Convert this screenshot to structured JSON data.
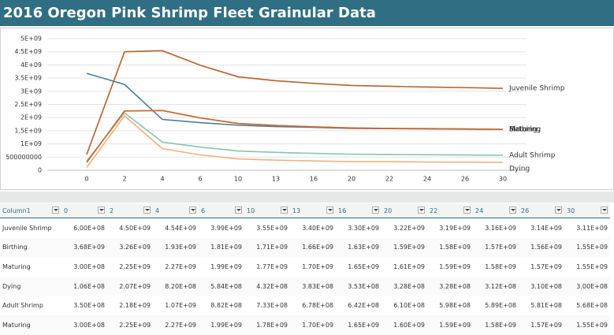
{
  "header": {
    "title": "2016 Oregon Pink Shrimp Fleet Grainular Data"
  },
  "chart_data": {
    "type": "line",
    "categories": [
      "0",
      "2",
      "4",
      "6",
      "10",
      "13",
      "16",
      "20",
      "22",
      "24",
      "26",
      "30"
    ],
    "ylim": [
      0,
      5000000000
    ],
    "yticks": [
      0,
      500000000,
      {
        "value": 1000000000,
        "label": "1E+09"
      },
      {
        "value": 1500000000,
        "label": "1.5E+09"
      },
      {
        "value": 2000000000,
        "label": "2E+09"
      },
      {
        "value": 2500000000,
        "label": "2.5E+09"
      },
      {
        "value": 3000000000,
        "label": "3E+09"
      },
      {
        "value": 3500000000,
        "label": "3.5E+09"
      },
      {
        "value": 4000000000,
        "label": "4E+09"
      },
      {
        "value": 4500000000,
        "label": "4.5E+09"
      },
      {
        "value": 5000000000,
        "label": "5E+09"
      }
    ],
    "grid": true,
    "series": [
      {
        "name": "Juvenile Shrimp",
        "color": "#b9602a",
        "values": [
          600000000,
          4500000000,
          4540000000,
          3990000000,
          3550000000,
          3400000000,
          3300000000,
          3220000000,
          3190000000,
          3160000000,
          3140000000,
          3110000000
        ]
      },
      {
        "name": "Birthing",
        "color": "#4a7c9c",
        "values": [
          3680000000,
          3260000000,
          1930000000,
          1810000000,
          1710000000,
          1660000000,
          1630000000,
          1590000000,
          1580000000,
          1570000000,
          1560000000,
          1550000000
        ]
      },
      {
        "name": "Maturing",
        "color": "#d9823f",
        "values": [
          300000000,
          2250000000,
          2270000000,
          1990000000,
          1770000000,
          1700000000,
          1650000000,
          1610000000,
          1590000000,
          1580000000,
          1570000000,
          1550000000
        ]
      },
      {
        "name": "Dying",
        "color": "#f0b27a",
        "values": [
          106000000,
          2070000000,
          820000000,
          584000000,
          432000000,
          383000000,
          353000000,
          328000000,
          328000000,
          312000000,
          310000000,
          300000000
        ]
      },
      {
        "name": "Adult Shrimp",
        "color": "#86c4ad",
        "values": [
          350000000,
          2180000000,
          1070000000,
          882000000,
          733000000,
          678000000,
          642000000,
          610000000,
          598000000,
          589000000,
          581000000,
          568000000
        ]
      },
      {
        "name": "Maturing",
        "color": "#c76b33",
        "values": [
          300000000,
          2250000000,
          2270000000,
          1990000000,
          1780000000,
          1700000000,
          1650000000,
          1600000000,
          1590000000,
          1580000000,
          1570000000,
          1550000000
        ]
      }
    ]
  },
  "table": {
    "columns": [
      "Column1",
      "0",
      "2",
      "4",
      "6",
      "10",
      "13",
      "16",
      "20",
      "22",
      "24",
      "26",
      "30"
    ],
    "rows": [
      [
        "Juvenile Shrimp",
        "6.00E+08",
        "4.50E+09",
        "4.54E+09",
        "3.99E+09",
        "3.55E+09",
        "3.40E+09",
        "3.30E+09",
        "3.22E+09",
        "3.19E+09",
        "3.16E+09",
        "3.14E+09",
        "3.11E+09"
      ],
      [
        "Birthing",
        "3.68E+09",
        "3.26E+09",
        "1.93E+09",
        "1.81E+09",
        "1.71E+09",
        "1.66E+09",
        "1.63E+09",
        "1.59E+09",
        "1.58E+09",
        "1.57E+09",
        "1.56E+09",
        "1.55E+09"
      ],
      [
        "Maturing",
        "3.00E+08",
        "2.25E+09",
        "2.27E+09",
        "1.99E+09",
        "1.77E+09",
        "1.70E+09",
        "1.65E+09",
        "1.61E+09",
        "1.59E+09",
        "1.58E+09",
        "1.57E+09",
        "1.55E+09"
      ],
      [
        "Dying",
        "1.06E+08",
        "2.07E+09",
        "8.20E+08",
        "5.84E+08",
        "4.32E+08",
        "3.83E+08",
        "3.53E+08",
        "3.28E+08",
        "3.28E+08",
        "3.12E+08",
        "3.10E+08",
        "3.00E+08"
      ],
      [
        "Adult Shrimp",
        "3.50E+08",
        "2.18E+09",
        "1.07E+09",
        "8.82E+08",
        "7.33E+08",
        "6.78E+08",
        "6.42E+08",
        "6.10E+08",
        "5.98E+08",
        "5.89E+08",
        "5.81E+08",
        "5.68E+08"
      ],
      [
        "Maturing",
        "3.00E+08",
        "2.25E+09",
        "2.27E+09",
        "1.99E+09",
        "1.78E+09",
        "1.70E+09",
        "1.65E+09",
        "1.60E+09",
        "1.59E+09",
        "1.58E+09",
        "1.57E+09",
        "1.55E+09"
      ]
    ]
  }
}
